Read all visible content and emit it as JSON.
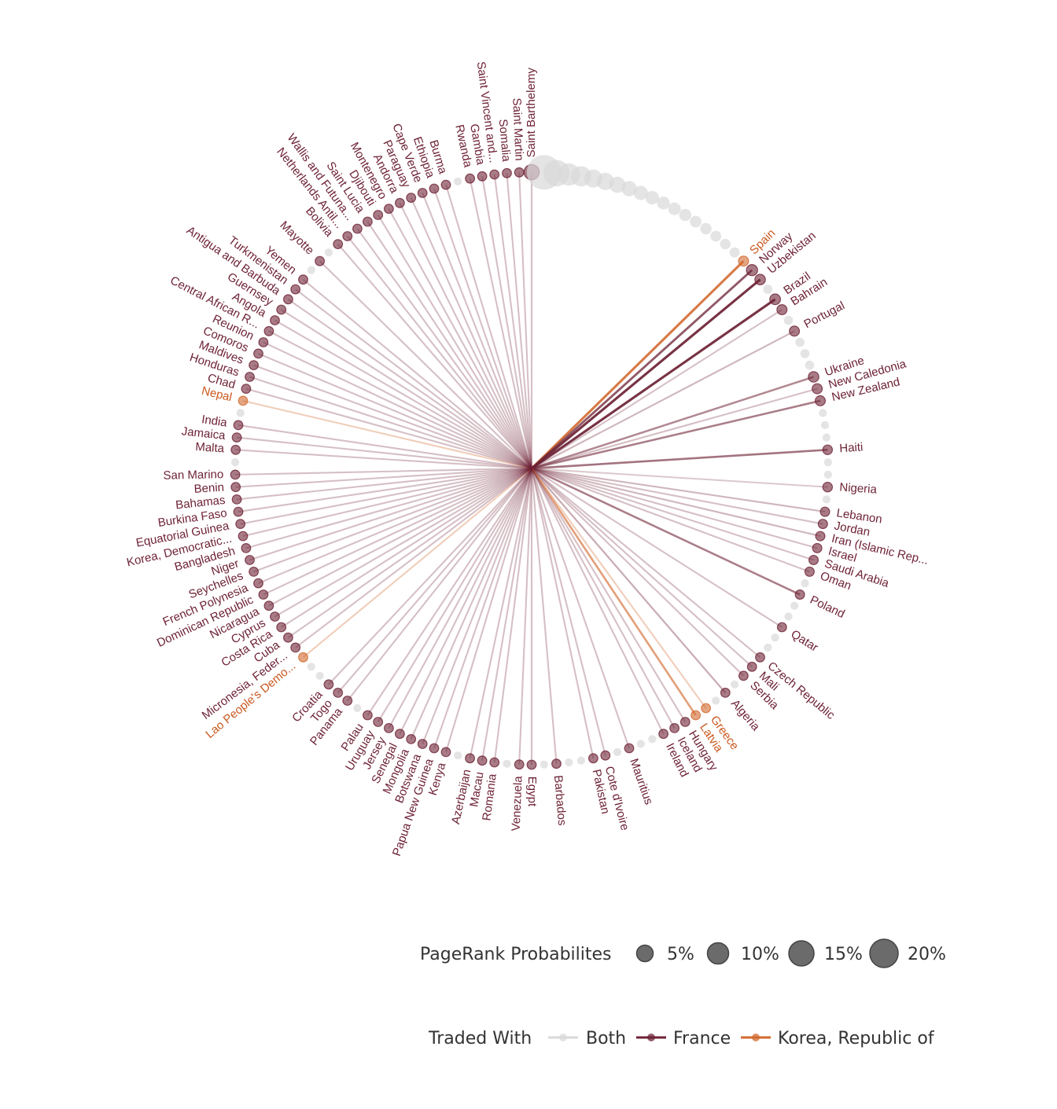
{
  "chart_data": {
    "type": "radial-network",
    "legend": {
      "size_title": "PageRank Probabilites",
      "size_entries": [
        {
          "label": "5%",
          "value": 0.05
        },
        {
          "label": "10%",
          "value": 0.1
        },
        {
          "label": "15%",
          "value": 0.15
        },
        {
          "label": "20%",
          "value": 0.2
        }
      ],
      "color_title": "Traded With",
      "color_entries": [
        {
          "label": "Both",
          "key": "both"
        },
        {
          "label": "France",
          "key": "france"
        },
        {
          "label": "Korea, Republic of",
          "key": "korea"
        }
      ]
    },
    "colors": {
      "both": "#d9d9d9",
      "france": "#6e2336",
      "korea": "#d2692e",
      "label_france": "#6e2336",
      "label_korea": "#c9581f"
    },
    "nodes": [
      {
        "name": "Saint Barthelemy",
        "g": "france",
        "s": 0.055
      },
      {
        "name": "",
        "g": "both",
        "s": 0.15
      },
      {
        "name": "",
        "g": "both",
        "s": 0.11
      },
      {
        "name": "",
        "g": "both",
        "s": 0.09
      },
      {
        "name": "",
        "g": "both",
        "s": 0.08
      },
      {
        "name": "",
        "g": "both",
        "s": 0.07
      },
      {
        "name": "",
        "g": "both",
        "s": 0.065
      },
      {
        "name": "",
        "g": "both",
        "s": 0.06
      },
      {
        "name": "",
        "g": "both",
        "s": 0.055
      },
      {
        "name": "",
        "g": "both",
        "s": 0.05
      },
      {
        "name": "",
        "g": "both",
        "s": 0.047
      },
      {
        "name": "",
        "g": "both",
        "s": 0.044
      },
      {
        "name": "",
        "g": "both",
        "s": 0.042
      },
      {
        "name": "",
        "g": "both",
        "s": 0.04
      },
      {
        "name": "",
        "g": "both",
        "s": 0.038
      },
      {
        "name": "",
        "g": "both",
        "s": 0.036
      },
      {
        "name": "",
        "g": "both",
        "s": 0.034
      },
      {
        "name": "",
        "g": "both",
        "s": 0.032
      },
      {
        "name": "",
        "g": "both",
        "s": 0.03
      },
      {
        "name": "Spain",
        "g": "korea",
        "s": 0.03,
        "w": 0.9
      },
      {
        "name": "Norway",
        "g": "france",
        "s": 0.035,
        "w": 0.75
      },
      {
        "name": "Uzbekistan",
        "g": "france",
        "s": 0.032,
        "w": 0.95
      },
      {
        "name": "",
        "g": "both",
        "s": 0.025
      },
      {
        "name": "Brazil",
        "g": "france",
        "s": 0.033,
        "w": 0.95
      },
      {
        "name": "Bahrain",
        "g": "france",
        "s": 0.03,
        "w": 0.2
      },
      {
        "name": "",
        "g": "both",
        "s": 0.025
      },
      {
        "name": "Portugal",
        "g": "france",
        "s": 0.03,
        "w": 0.25
      },
      {
        "name": "",
        "g": "both",
        "s": 0.025
      },
      {
        "name": "",
        "g": "both",
        "s": 0.025
      },
      {
        "name": "",
        "g": "both",
        "s": 0.025
      },
      {
        "name": "Ukraine",
        "g": "france",
        "s": 0.032,
        "w": 0.5
      },
      {
        "name": "New Caledonia",
        "g": "france",
        "s": 0.03,
        "w": 0.2
      },
      {
        "name": "New Zealand",
        "g": "france",
        "s": 0.03,
        "w": 0.55
      },
      {
        "name": "",
        "g": "both",
        "s": 0.02
      },
      {
        "name": "",
        "g": "both",
        "s": 0.02
      },
      {
        "name": "",
        "g": "both",
        "s": 0.02
      },
      {
        "name": "Haiti",
        "g": "france",
        "s": 0.028,
        "w": 0.6
      },
      {
        "name": "",
        "g": "both",
        "s": 0.02
      },
      {
        "name": "",
        "g": "both",
        "s": 0.02
      },
      {
        "name": "Nigeria",
        "g": "france",
        "s": 0.028,
        "w": 0.15
      },
      {
        "name": "",
        "g": "both",
        "s": 0.02
      },
      {
        "name": "Lebanon",
        "g": "france",
        "s": 0.026,
        "w": 0.25
      },
      {
        "name": "Jordan",
        "g": "france",
        "s": 0.026,
        "w": 0.2
      },
      {
        "name": "Iran (Islamic Rep...",
        "g": "france",
        "s": 0.026,
        "w": 0.25
      },
      {
        "name": "Israel",
        "g": "france",
        "s": 0.026,
        "w": 0.2
      },
      {
        "name": "Saudi Arabia",
        "g": "france",
        "s": 0.026,
        "w": 0.2
      },
      {
        "name": "Oman",
        "g": "france",
        "s": 0.026,
        "w": 0.2
      },
      {
        "name": "",
        "g": "both",
        "s": 0.02
      },
      {
        "name": "Poland",
        "g": "france",
        "s": 0.026,
        "w": 0.55
      },
      {
        "name": "",
        "g": "both",
        "s": 0.02
      },
      {
        "name": "",
        "g": "both",
        "s": 0.02
      },
      {
        "name": "Qatar",
        "g": "france",
        "s": 0.025,
        "w": 0.2
      },
      {
        "name": "",
        "g": "both",
        "s": 0.02
      },
      {
        "name": "",
        "g": "both",
        "s": 0.02
      },
      {
        "name": "Czech Republic",
        "g": "france",
        "s": 0.025,
        "w": 0.2
      },
      {
        "name": "Mali",
        "g": "france",
        "s": 0.025,
        "w": 0.2
      },
      {
        "name": "Serbia",
        "g": "france",
        "s": 0.025,
        "w": 0.2
      },
      {
        "name": "",
        "g": "both",
        "s": 0.02
      },
      {
        "name": "Algeria",
        "g": "france",
        "s": 0.025,
        "w": 0.3
      },
      {
        "name": "",
        "g": "both",
        "s": 0.02
      },
      {
        "name": "Greece",
        "g": "korea",
        "s": 0.025,
        "w": 0.25
      },
      {
        "name": "Latvia",
        "g": "korea",
        "s": 0.025,
        "w": 0.6
      },
      {
        "name": "Hungary",
        "g": "france",
        "s": 0.025,
        "w": 0.2
      },
      {
        "name": "Iceland",
        "g": "france",
        "s": 0.025,
        "w": 0.2
      },
      {
        "name": "Ireland",
        "g": "france",
        "s": 0.025,
        "w": 0.2
      },
      {
        "name": "",
        "g": "both",
        "s": 0.02
      },
      {
        "name": "",
        "g": "both",
        "s": 0.02
      },
      {
        "name": "Mauritius",
        "g": "france",
        "s": 0.025,
        "w": 0.2
      },
      {
        "name": "",
        "g": "both",
        "s": 0.02
      },
      {
        "name": "Cote d'Ivoire",
        "g": "france",
        "s": 0.025,
        "w": 0.2
      },
      {
        "name": "Pakistan",
        "g": "france",
        "s": 0.025,
        "w": 0.2
      },
      {
        "name": "",
        "g": "both",
        "s": 0.02
      },
      {
        "name": "",
        "g": "both",
        "s": 0.02
      },
      {
        "name": "Barbados",
        "g": "france",
        "s": 0.025,
        "w": 0.2
      },
      {
        "name": "",
        "g": "both",
        "s": 0.02
      },
      {
        "name": "Egypt",
        "g": "france",
        "s": 0.025,
        "w": 0.2
      },
      {
        "name": "Venezuela",
        "g": "france",
        "s": 0.025,
        "w": 0.2
      },
      {
        "name": "",
        "g": "both",
        "s": 0.02
      },
      {
        "name": "Romania",
        "g": "france",
        "s": 0.025,
        "w": 0.2
      },
      {
        "name": "Macau",
        "g": "france",
        "s": 0.025,
        "w": 0.2
      },
      {
        "name": "Azerbaijan",
        "g": "france",
        "s": 0.025,
        "w": 0.2
      },
      {
        "name": "",
        "g": "both",
        "s": 0.02
      },
      {
        "name": "Kenya",
        "g": "france",
        "s": 0.025,
        "w": 0.2
      },
      {
        "name": "Papua New Guinea",
        "g": "france",
        "s": 0.025,
        "w": 0.2
      },
      {
        "name": "Botswana",
        "g": "france",
        "s": 0.025,
        "w": 0.2
      },
      {
        "name": "Mongolia",
        "g": "france",
        "s": 0.025,
        "w": 0.2
      },
      {
        "name": "Senegal",
        "g": "france",
        "s": 0.025,
        "w": 0.2
      },
      {
        "name": "Jersey",
        "g": "france",
        "s": 0.025,
        "w": 0.2
      },
      {
        "name": "Uruguay",
        "g": "france",
        "s": 0.025,
        "w": 0.2
      },
      {
        "name": "Palau",
        "g": "france",
        "s": 0.025,
        "w": 0.2
      },
      {
        "name": "",
        "g": "both",
        "s": 0.02
      },
      {
        "name": "Panama",
        "g": "france",
        "s": 0.025,
        "w": 0.2
      },
      {
        "name": "Togo",
        "g": "france",
        "s": 0.025,
        "w": 0.2
      },
      {
        "name": "Croatia",
        "g": "france",
        "s": 0.025,
        "w": 0.2
      },
      {
        "name": "",
        "g": "both",
        "s": 0.02
      },
      {
        "name": "",
        "g": "both",
        "s": 0.02
      },
      {
        "name": "Lao People's Demo...",
        "g": "korea",
        "s": 0.025,
        "w": 0.25
      },
      {
        "name": "Micronesia, Feder...",
        "g": "france",
        "s": 0.025,
        "w": 0.2
      },
      {
        "name": "Cuba",
        "g": "france",
        "s": 0.025,
        "w": 0.2
      },
      {
        "name": "Costa Rica",
        "g": "france",
        "s": 0.025,
        "w": 0.2
      },
      {
        "name": "Cyprus",
        "g": "france",
        "s": 0.025,
        "w": 0.2
      },
      {
        "name": "Nicaragua",
        "g": "france",
        "s": 0.025,
        "w": 0.2
      },
      {
        "name": "Dominican Republic",
        "g": "france",
        "s": 0.025,
        "w": 0.2
      },
      {
        "name": "French Polynesia",
        "g": "france",
        "s": 0.025,
        "w": 0.2
      },
      {
        "name": "Seychelles",
        "g": "france",
        "s": 0.025,
        "w": 0.2
      },
      {
        "name": "Niger",
        "g": "france",
        "s": 0.025,
        "w": 0.2
      },
      {
        "name": "Bangladesh",
        "g": "france",
        "s": 0.025,
        "w": 0.2
      },
      {
        "name": "Korea, Democratic...",
        "g": "france",
        "s": 0.025,
        "w": 0.2
      },
      {
        "name": "Equatorial Guinea",
        "g": "france",
        "s": 0.025,
        "w": 0.2
      },
      {
        "name": "Burkina Faso",
        "g": "france",
        "s": 0.025,
        "w": 0.2
      },
      {
        "name": "Bahamas",
        "g": "france",
        "s": 0.025,
        "w": 0.2
      },
      {
        "name": "Benin",
        "g": "france",
        "s": 0.025,
        "w": 0.2
      },
      {
        "name": "San Marino",
        "g": "france",
        "s": 0.025,
        "w": 0.2
      },
      {
        "name": "",
        "g": "both",
        "s": 0.02
      },
      {
        "name": "Malta",
        "g": "france",
        "s": 0.025,
        "w": 0.2
      },
      {
        "name": "Jamaica",
        "g": "france",
        "s": 0.025,
        "w": 0.2
      },
      {
        "name": "India",
        "g": "france",
        "s": 0.025,
        "w": 0.2
      },
      {
        "name": "",
        "g": "both",
        "s": 0.02
      },
      {
        "name": "Nepal",
        "g": "korea",
        "s": 0.025,
        "w": 0.25
      },
      {
        "name": "Chad",
        "g": "france",
        "s": 0.025,
        "w": 0.2
      },
      {
        "name": "Honduras",
        "g": "france",
        "s": 0.025,
        "w": 0.2
      },
      {
        "name": "Maldives",
        "g": "france",
        "s": 0.025,
        "w": 0.2
      },
      {
        "name": "Comoros",
        "g": "france",
        "s": 0.025,
        "w": 0.2
      },
      {
        "name": "Reunion",
        "g": "france",
        "s": 0.025,
        "w": 0.2
      },
      {
        "name": "Central African R...",
        "g": "france",
        "s": 0.025,
        "w": 0.2
      },
      {
        "name": "Angola",
        "g": "france",
        "s": 0.025,
        "w": 0.2
      },
      {
        "name": "Guernsey",
        "g": "france",
        "s": 0.025,
        "w": 0.2
      },
      {
        "name": "Antigua and Barbuda",
        "g": "france",
        "s": 0.025,
        "w": 0.2
      },
      {
        "name": "Turkmenistan",
        "g": "france",
        "s": 0.025,
        "w": 0.2
      },
      {
        "name": "Yemen",
        "g": "france",
        "s": 0.025,
        "w": 0.2
      },
      {
        "name": "",
        "g": "both",
        "s": 0.02
      },
      {
        "name": "Mayotte",
        "g": "france",
        "s": 0.025,
        "w": 0.2
      },
      {
        "name": "",
        "g": "both",
        "s": 0.02
      },
      {
        "name": "Bolivia",
        "g": "france",
        "s": 0.025,
        "w": 0.2
      },
      {
        "name": "Netherlands Antil...",
        "g": "france",
        "s": 0.025,
        "w": 0.2
      },
      {
        "name": "Wallis and Futuna...",
        "g": "france",
        "s": 0.025,
        "w": 0.2
      },
      {
        "name": "Saint Lucia",
        "g": "france",
        "s": 0.025,
        "w": 0.2
      },
      {
        "name": "Djibouti",
        "g": "france",
        "s": 0.025,
        "w": 0.2
      },
      {
        "name": "Montenegro",
        "g": "france",
        "s": 0.025,
        "w": 0.2
      },
      {
        "name": "Andorra",
        "g": "france",
        "s": 0.025,
        "w": 0.2
      },
      {
        "name": "Paraguay",
        "g": "france",
        "s": 0.025,
        "w": 0.2
      },
      {
        "name": "Cape Verde",
        "g": "france",
        "s": 0.025,
        "w": 0.2
      },
      {
        "name": "Ethiopia",
        "g": "france",
        "s": 0.025,
        "w": 0.2
      },
      {
        "name": "Burma",
        "g": "france",
        "s": 0.025,
        "w": 0.2
      },
      {
        "name": "",
        "g": "both",
        "s": 0.02
      },
      {
        "name": "Rwanda",
        "g": "france",
        "s": 0.025,
        "w": 0.2
      },
      {
        "name": "Gambia",
        "g": "france",
        "s": 0.025,
        "w": 0.2
      },
      {
        "name": "Saint Vincent and...",
        "g": "france",
        "s": 0.025,
        "w": 0.2
      },
      {
        "name": "Somalia",
        "g": "france",
        "s": 0.025,
        "w": 0.2
      },
      {
        "name": "Saint Martin",
        "g": "france",
        "s": 0.025,
        "w": 0.2
      }
    ]
  }
}
